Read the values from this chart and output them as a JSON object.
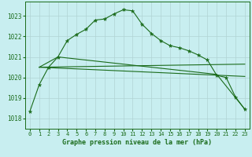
{
  "title": "Graphe pression niveau de la mer (hPa)",
  "background_color": "#c8eef0",
  "grid_color": "#b0d4d4",
  "line_color": "#1a6b1a",
  "xlim": [
    -0.5,
    23.5
  ],
  "ylim": [
    1017.5,
    1023.7
  ],
  "yticks": [
    1018,
    1019,
    1020,
    1021,
    1022,
    1023
  ],
  "xticks": [
    0,
    1,
    2,
    3,
    4,
    5,
    6,
    7,
    8,
    9,
    10,
    11,
    12,
    13,
    14,
    15,
    16,
    17,
    18,
    19,
    20,
    21,
    22,
    23
  ],
  "series": [
    {
      "x": [
        0,
        1,
        2,
        3,
        4,
        5,
        6,
        7,
        8,
        9,
        10,
        11,
        12,
        13,
        14,
        15,
        16,
        17,
        18,
        19,
        20,
        21,
        22,
        23
      ],
      "y": [
        1018.35,
        1019.65,
        1020.5,
        1021.0,
        1021.8,
        1022.1,
        1022.35,
        1022.8,
        1022.85,
        1023.1,
        1023.3,
        1023.25,
        1022.6,
        1022.15,
        1021.8,
        1021.55,
        1021.45,
        1021.3,
        1021.1,
        1020.85,
        1020.1,
        1020.0,
        1019.05,
        1018.45
      ],
      "with_marker": true
    },
    {
      "x": [
        1,
        23
      ],
      "y": [
        1020.5,
        1020.65
      ],
      "with_marker": false
    },
    {
      "x": [
        1,
        23
      ],
      "y": [
        1020.5,
        1020.05
      ],
      "with_marker": false
    },
    {
      "x": [
        1,
        3,
        20,
        23
      ],
      "y": [
        1020.5,
        1021.0,
        1020.15,
        1018.45
      ],
      "with_marker": false
    }
  ]
}
